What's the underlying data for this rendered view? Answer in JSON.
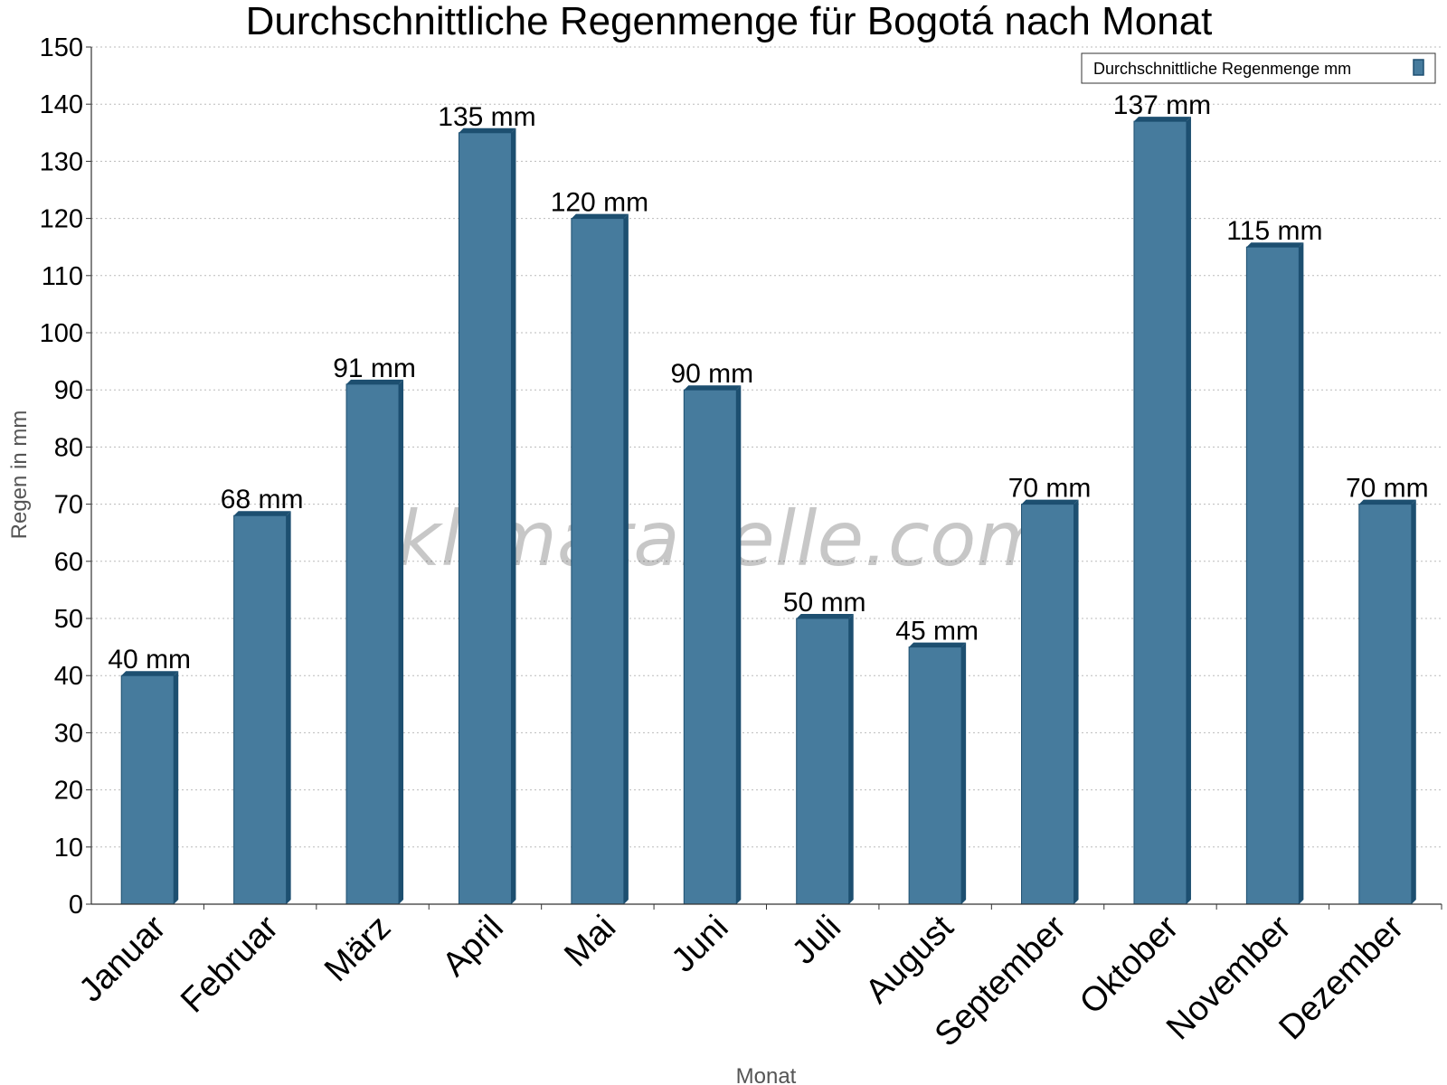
{
  "chart_data": {
    "type": "bar",
    "title": "Durchschnittliche Regenmenge für Bogotá nach Monat",
    "xlabel": "Monat",
    "ylabel": "Regen in mm",
    "categories": [
      "Januar",
      "Februar",
      "März",
      "April",
      "Mai",
      "Juni",
      "Juli",
      "August",
      "September",
      "Oktober",
      "November",
      "Dezember"
    ],
    "series": [
      {
        "name": "Durchschnittliche Regenmenge mm",
        "values": [
          40,
          68,
          91,
          135,
          120,
          90,
          50,
          45,
          70,
          137,
          115,
          70
        ],
        "labels": [
          "40 mm",
          "68 mm",
          "91 mm",
          "135 mm",
          "120 mm",
          "90 mm",
          "50 mm",
          "45 mm",
          "70 mm",
          "137 mm",
          "115 mm",
          "70 mm"
        ]
      }
    ],
    "ylim": [
      0,
      150
    ],
    "yticks": [
      0,
      10,
      20,
      30,
      40,
      50,
      60,
      70,
      80,
      90,
      100,
      110,
      120,
      130,
      140,
      150
    ],
    "grid": true,
    "legend_position": "top-right",
    "colors": {
      "bar": "#467b9d",
      "bar_dark": "#1d4f70"
    },
    "watermark": "klimatabelle.com"
  }
}
